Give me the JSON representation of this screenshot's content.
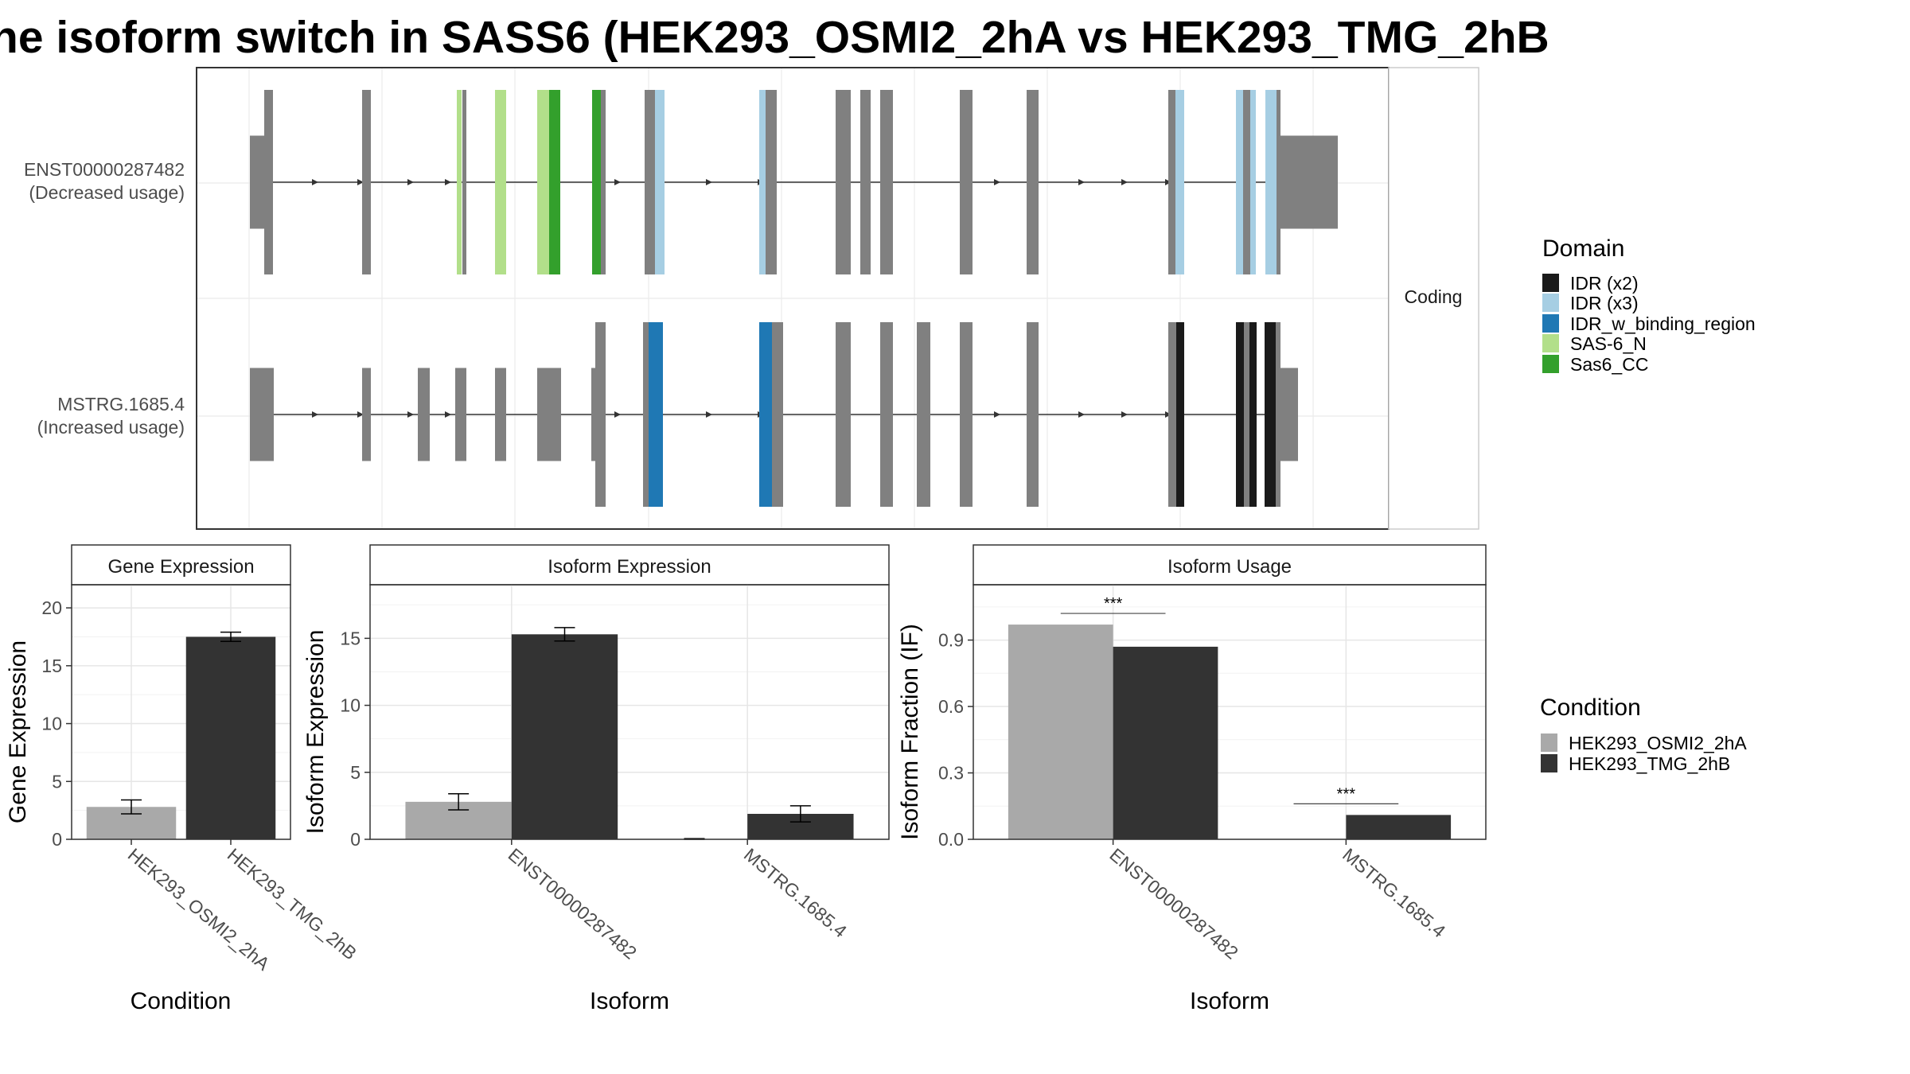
{
  "title": "he isoform switch in SASS6 (HEK293_OSMI2_2hA vs HEK293_TMG_2hB",
  "colors": {
    "cond1": "#a9a9a9",
    "cond2": "#333333",
    "exon": "#808080",
    "domains": [
      "#1a1a1a",
      "#a6cee3",
      "#1f78b4",
      "#b2df8a",
      "#33a02c"
    ]
  },
  "chart_data": [
    {
      "type": "gene-structure",
      "facet_label": "Coding",
      "isoforms": [
        {
          "id": "ENST00000287482",
          "label": "(Decreased usage)"
        },
        {
          "id": "MSTRG.1685.4",
          "label": "(Increased usage)"
        }
      ],
      "legend": {
        "title": "Domain",
        "entries": [
          "IDR (x2)",
          "IDR (x3)",
          "IDR_w_binding_region",
          "SAS-6_N",
          "Sas6_CC"
        ]
      }
    },
    {
      "type": "bar",
      "facet_title": "Gene Expression",
      "xlabel": "Condition",
      "ylabel": "Gene Expression",
      "ylim": [
        0,
        22
      ],
      "yticks": [
        0,
        5,
        10,
        15,
        20
      ],
      "categories": [
        "HEK293_OSMI2_2hA",
        "HEK293_TMG_2hB"
      ],
      "values": [
        2.8,
        17.5
      ],
      "errors": [
        0.6,
        0.4
      ]
    },
    {
      "type": "bar",
      "facet_title": "Isoform Expression",
      "xlabel": "Isoform",
      "ylabel": "Isoform Expression",
      "ylim": [
        0,
        19
      ],
      "yticks": [
        0,
        5,
        10,
        15
      ],
      "categories": [
        "ENST00000287482",
        "MSTRG.1685.4"
      ],
      "series": [
        {
          "name": "HEK293_OSMI2_2hA",
          "values": [
            2.8,
            0.0
          ],
          "errors": [
            0.6,
            0.05
          ]
        },
        {
          "name": "HEK293_TMG_2hB",
          "values": [
            15.3,
            1.9
          ],
          "errors": [
            0.5,
            0.6
          ]
        }
      ]
    },
    {
      "type": "bar",
      "facet_title": "Isoform Usage",
      "xlabel": "Isoform",
      "ylabel": "Isoform Fraction (IF)",
      "ylim": [
        0,
        1.15
      ],
      "yticks": [
        "0.0",
        "0.3",
        "0.6",
        "0.9"
      ],
      "categories": [
        "ENST00000287482",
        "MSTRG.1685.4"
      ],
      "series": [
        {
          "name": "HEK293_OSMI2_2hA",
          "values": [
            0.97,
            0.0
          ]
        },
        {
          "name": "HEK293_TMG_2hB",
          "values": [
            0.87,
            0.11
          ]
        }
      ],
      "significance": [
        "***",
        "***"
      ],
      "legend": {
        "title": "Condition",
        "entries": [
          "HEK293_OSMI2_2hA",
          "HEK293_TMG_2hB"
        ]
      }
    }
  ]
}
